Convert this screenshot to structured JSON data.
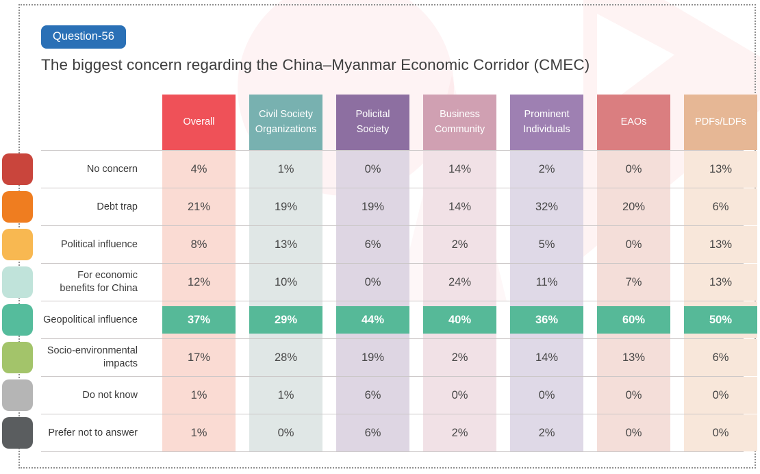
{
  "badge": {
    "label": "Question-56",
    "color": "#2a70b6"
  },
  "title": "The biggest concern regarding the China–Myanmar Economic Corridor (CMEC)",
  "highlight_color": "#56b998",
  "watermark_color": "#ef5158",
  "table": {
    "columns": [
      {
        "label": "Overall",
        "color": "#ef5158",
        "tint": "#fadbd3"
      },
      {
        "label": "Civil Society Organizations",
        "color": "#78b1b0",
        "tint": "#e0e7e6"
      },
      {
        "label": "Policital Society",
        "color": "#8d6fa1",
        "tint": "#ded6e3"
      },
      {
        "label": "Business Community",
        "color": "#d0a0b2",
        "tint": "#f1e1e6"
      },
      {
        "label": "Prominent Individuals",
        "color": "#9e80b2",
        "tint": "#dfd9e7"
      },
      {
        "label": "EAOs",
        "color": "#da7e80",
        "tint": "#f4ded9"
      },
      {
        "label": "PDFs/LDFs",
        "color": "#e6b795",
        "tint": "#f8e7da"
      }
    ],
    "rows": [
      {
        "label": "No concern",
        "values": [
          "4%",
          "1%",
          "0%",
          "14%",
          "2%",
          "0%",
          "13%"
        ],
        "highlight": false
      },
      {
        "label": "Debt trap",
        "values": [
          "21%",
          "19%",
          "19%",
          "14%",
          "32%",
          "20%",
          "6%"
        ],
        "highlight": false
      },
      {
        "label": "Political influence",
        "values": [
          "8%",
          "13%",
          "6%",
          "2%",
          "5%",
          "0%",
          "13%"
        ],
        "highlight": false
      },
      {
        "label": "For economic benefits for China",
        "values": [
          "12%",
          "10%",
          "0%",
          "24%",
          "11%",
          "7%",
          "13%"
        ],
        "highlight": false
      },
      {
        "label": "Geopolitical influence",
        "values": [
          "37%",
          "29%",
          "44%",
          "40%",
          "36%",
          "60%",
          "50%"
        ],
        "highlight": true
      },
      {
        "label": "Socio-environmental impacts",
        "values": [
          "17%",
          "28%",
          "19%",
          "2%",
          "14%",
          "13%",
          "6%"
        ],
        "highlight": false
      },
      {
        "label": "Do not know",
        "values": [
          "1%",
          "1%",
          "6%",
          "0%",
          "0%",
          "0%",
          "0%"
        ],
        "highlight": false
      },
      {
        "label": "Prefer not to answer",
        "values": [
          "1%",
          "0%",
          "6%",
          "2%",
          "2%",
          "0%",
          "0%"
        ],
        "highlight": false
      }
    ]
  },
  "left_markers": [
    "#c9453c",
    "#ef7d20",
    "#f8b851",
    "#c0e3da",
    "#55bc9c",
    "#a3c46a",
    "#b5b5b5",
    "#5a5d5f"
  ],
  "chart_data": {
    "type": "table",
    "title": "The biggest concern regarding the China–Myanmar Economic Corridor (CMEC)",
    "columns": [
      "Overall",
      "Civil Society Organizations",
      "Policital Society",
      "Business Community",
      "Prominent Individuals",
      "EAOs",
      "PDFs/LDFs"
    ],
    "rows": [
      "No concern",
      "Debt trap",
      "Political influence",
      "For economic benefits for China",
      "Geopolitical influence",
      "Socio-environmental impacts",
      "Do not know",
      "Prefer not to answer"
    ],
    "values_percent": [
      [
        4,
        1,
        0,
        14,
        2,
        0,
        13
      ],
      [
        21,
        19,
        19,
        14,
        32,
        20,
        6
      ],
      [
        8,
        13,
        6,
        2,
        5,
        0,
        13
      ],
      [
        12,
        10,
        0,
        24,
        11,
        7,
        13
      ],
      [
        37,
        29,
        44,
        40,
        36,
        60,
        50
      ],
      [
        17,
        28,
        19,
        2,
        14,
        13,
        6
      ],
      [
        1,
        1,
        6,
        0,
        0,
        0,
        0
      ],
      [
        1,
        0,
        6,
        2,
        2,
        0,
        0
      ]
    ],
    "highlighted_row": "Geopolitical influence",
    "legend_position": "none",
    "grid": "horizontal-lines"
  }
}
